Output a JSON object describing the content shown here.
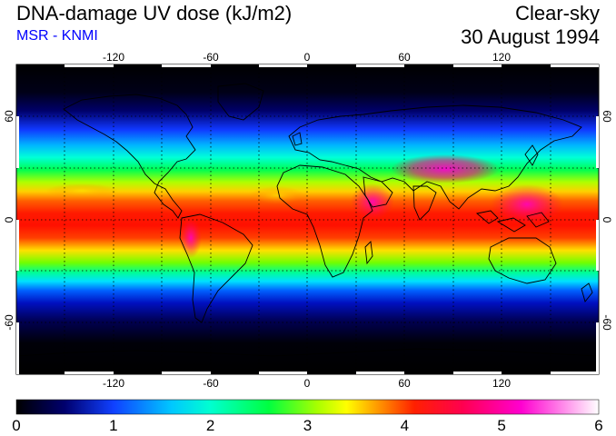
{
  "header": {
    "title": "DNA-damage UV dose (kJ/m2)",
    "source": "MSR - KNMI",
    "condition": "Clear-sky",
    "date": "30 August 1994",
    "source_color": "#0000ff"
  },
  "map": {
    "lon_ticks": [
      "-120",
      "-60",
      "0",
      "60",
      "120"
    ],
    "lat_ticks_left": [
      "60",
      "0",
      "-60"
    ],
    "lat_ticks_right": [
      "60",
      "0",
      "-60"
    ],
    "projection": "equirectangular",
    "lon_range": [
      -180,
      180
    ],
    "lat_range": [
      -90,
      90
    ],
    "grid": "dotted, every 30 degrees",
    "coastlines": true
  },
  "colorbar": {
    "min": 0,
    "max": 6,
    "labels": [
      "0",
      "1",
      "2",
      "3",
      "4",
      "5",
      "6"
    ],
    "stops": [
      {
        "value": 0.0,
        "color": "#000000"
      },
      {
        "value": 0.5,
        "color": "#00006e"
      },
      {
        "value": 1.0,
        "color": "#1040ff"
      },
      {
        "value": 1.6,
        "color": "#00c8ff"
      },
      {
        "value": 2.0,
        "color": "#00ffd0"
      },
      {
        "value": 2.6,
        "color": "#00ff40"
      },
      {
        "value": 3.1,
        "color": "#a8ff00"
      },
      {
        "value": 3.4,
        "color": "#ffff00"
      },
      {
        "value": 3.7,
        "color": "#ffa000"
      },
      {
        "value": 4.1,
        "color": "#ff2000"
      },
      {
        "value": 4.6,
        "color": "#ff0050"
      },
      {
        "value": 5.2,
        "color": "#ff00d0"
      },
      {
        "value": 6.0,
        "color": "#ffffff"
      }
    ]
  }
}
